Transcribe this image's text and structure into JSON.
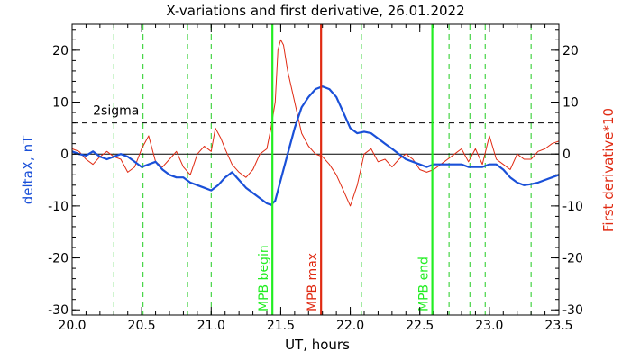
{
  "chart_data": {
    "type": "line",
    "title": "X-variations and first derivative, 26.01.2022",
    "xlabel": "UT, hours",
    "ylabel_left": "deltaX, nT",
    "ylabel_right": "First derivative*10",
    "xlim": [
      20.0,
      23.5
    ],
    "ylim": [
      -31,
      25
    ],
    "x_ticks": [
      "20.0",
      "20.5",
      "21.0",
      "21.5",
      "22.0",
      "22.5",
      "23.0",
      "23.5"
    ],
    "y_ticks_left": [
      "20",
      "10",
      "0",
      "-10",
      "-20",
      "-30"
    ],
    "y_ticks_right": [
      "20",
      "10",
      "0",
      "-10",
      "-20",
      "-30"
    ],
    "sigma_label": "2sigma",
    "sigma_value": 6,
    "zero_line": 0,
    "colors": {
      "deltaX": "#1a50d8",
      "derivative": "#e02a12",
      "event_green": "#22ee22",
      "event_red": "#e02a12",
      "dashed_green": "#22cc22"
    },
    "dashed_verticals": [
      20.3,
      20.51,
      20.83,
      21.0,
      22.08,
      22.71,
      22.86,
      22.97,
      23.3
    ],
    "events": [
      {
        "name": "MPB begin",
        "x": 21.44,
        "color": "#22ee22"
      },
      {
        "name": "MPB max",
        "x": 21.79,
        "color": "#e02a12"
      },
      {
        "name": "MPB end",
        "x": 22.59,
        "color": "#22ee22"
      }
    ],
    "series": [
      {
        "key": "deltaX",
        "x": [
          20.0,
          20.05,
          20.1,
          20.15,
          20.2,
          20.25,
          20.3,
          20.35,
          20.4,
          20.45,
          20.5,
          20.55,
          20.6,
          20.65,
          20.7,
          20.75,
          20.8,
          20.85,
          20.9,
          20.95,
          21.0,
          21.05,
          21.1,
          21.15,
          21.2,
          21.25,
          21.3,
          21.35,
          21.4,
          21.43,
          21.46,
          21.5,
          21.55,
          21.6,
          21.65,
          21.7,
          21.75,
          21.8,
          21.85,
          21.9,
          21.95,
          22.0,
          22.05,
          22.1,
          22.15,
          22.2,
          22.25,
          22.3,
          22.35,
          22.4,
          22.45,
          22.5,
          22.55,
          22.6,
          22.65,
          22.7,
          22.75,
          22.8,
          22.85,
          22.9,
          22.95,
          23.0,
          23.05,
          23.1,
          23.15,
          23.2,
          23.25,
          23.3,
          23.35,
          23.4,
          23.45,
          23.5
        ],
        "y": [
          0.5,
          0,
          -0.3,
          0.5,
          -0.5,
          -1,
          -0.5,
          0,
          -0.5,
          -1.5,
          -2.5,
          -2,
          -1.5,
          -3,
          -4,
          -4.5,
          -4.5,
          -5.5,
          -6,
          -6.5,
          -7,
          -6,
          -4.5,
          -3.5,
          -5,
          -6.5,
          -7.5,
          -8.5,
          -9.5,
          -9.8,
          -9,
          -5,
          0,
          5,
          9,
          11,
          12.5,
          13,
          12.5,
          11,
          8,
          5,
          4,
          4.3,
          4,
          3,
          2,
          1,
          0,
          -1,
          -1.5,
          -2,
          -2.5,
          -2,
          -2,
          -2,
          -2,
          -2,
          -2.5,
          -2.5,
          -2.5,
          -2,
          -2,
          -3,
          -4.5,
          -5.5,
          -6,
          -5.8,
          -5.5,
          -5,
          -4.5,
          -4
        ]
      },
      {
        "key": "derivative",
        "x": [
          20.0,
          20.05,
          20.1,
          20.15,
          20.2,
          20.25,
          20.3,
          20.35,
          20.4,
          20.45,
          20.5,
          20.55,
          20.6,
          20.65,
          20.7,
          20.75,
          20.8,
          20.85,
          20.9,
          20.95,
          21.0,
          21.03,
          21.07,
          21.1,
          21.15,
          21.2,
          21.25,
          21.3,
          21.35,
          21.4,
          21.43,
          21.46,
          21.48,
          21.5,
          21.52,
          21.55,
          21.6,
          21.65,
          21.7,
          21.75,
          21.8,
          21.85,
          21.9,
          21.95,
          22.0,
          22.05,
          22.1,
          22.15,
          22.2,
          22.25,
          22.3,
          22.35,
          22.4,
          22.45,
          22.5,
          22.55,
          22.6,
          22.65,
          22.7,
          22.75,
          22.8,
          22.85,
          22.9,
          22.95,
          23.0,
          23.05,
          23.1,
          23.15,
          23.2,
          23.25,
          23.3,
          23.35,
          23.4,
          23.45,
          23.5
        ],
        "y": [
          1,
          0.5,
          -1,
          -2,
          -0.5,
          0.5,
          -0.5,
          -1,
          -3.5,
          -2.5,
          1,
          3.5,
          -1.5,
          -2.5,
          -1,
          0.5,
          -2.5,
          -4,
          0,
          1.5,
          0.5,
          5,
          3,
          1,
          -2,
          -3.5,
          -4.5,
          -3,
          0,
          1,
          5,
          10,
          20,
          22,
          21,
          16,
          10,
          4,
          1.5,
          0,
          -0.5,
          -2,
          -4,
          -7,
          -10,
          -6,
          0,
          1,
          -1.5,
          -1,
          -2.5,
          -1,
          0,
          -1,
          -3,
          -3.5,
          -3,
          -2,
          -1,
          0,
          1,
          -1.5,
          1,
          -2,
          3.5,
          -1,
          -2,
          -3,
          0,
          -1,
          -1,
          0.5,
          1,
          2,
          2.5
        ]
      }
    ]
  }
}
